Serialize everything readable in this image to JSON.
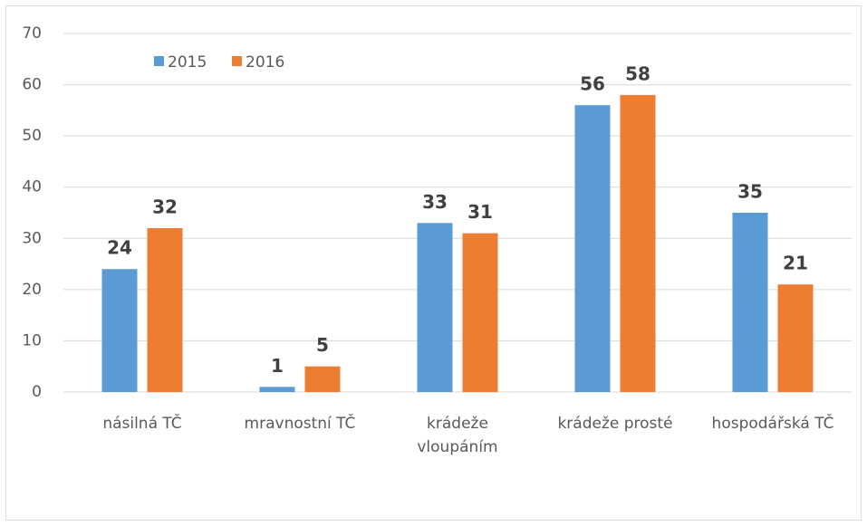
{
  "chart_data": {
    "type": "bar",
    "categories": [
      "násilná TČ",
      "mravnostní TČ",
      "krádeže vloupáním",
      "krádeže prosté",
      "hospodářská TČ"
    ],
    "series": [
      {
        "name": "2015",
        "color": "#5b9bd5",
        "values": [
          24,
          1,
          33,
          56,
          35
        ]
      },
      {
        "name": "2016",
        "color": "#ed7d31",
        "values": [
          32,
          5,
          31,
          58,
          21
        ]
      }
    ],
    "ylim": [
      0,
      70
    ],
    "yticks": [
      0,
      10,
      20,
      30,
      40,
      50,
      60,
      70
    ],
    "grid": true,
    "legend": "top-left"
  }
}
